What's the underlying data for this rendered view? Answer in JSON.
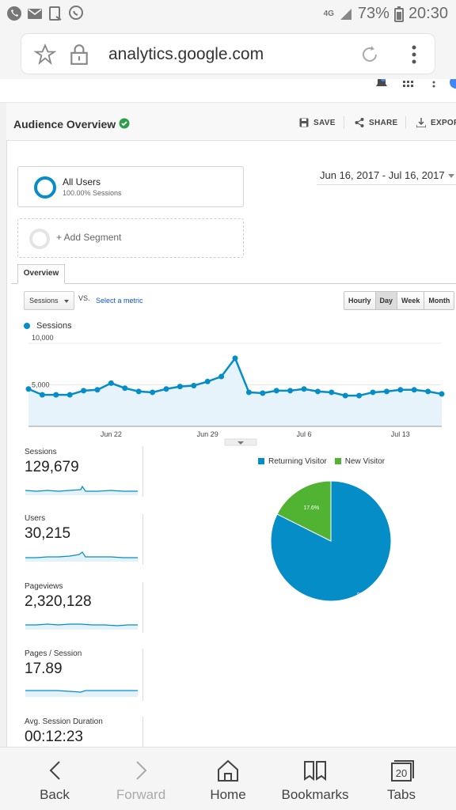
{
  "status_bar": {
    "network": "4G",
    "battery": "73%",
    "time": "20:30"
  },
  "browser": {
    "url": "analytics.google.com"
  },
  "report": {
    "title": "Audience Overview",
    "actions": {
      "save": "SAVE",
      "share": "SHARE",
      "export": "EXPORT"
    },
    "segment": {
      "name": "All Users",
      "share": "100.00% Sessions",
      "add_label": "+ Add Segment"
    },
    "date_range": "Jun 16, 2017 - Jul 16, 2017",
    "tab": "Overview",
    "metric_select": "Sessions",
    "vs": "VS.",
    "select_metric": "Select a metric",
    "granularity": [
      "Hourly",
      "Day",
      "Week",
      "Month"
    ],
    "granularity_selected": "Day"
  },
  "chart_data": [
    {
      "type": "area",
      "series": [
        {
          "name": "Sessions",
          "values": [
            4500,
            3800,
            3800,
            3800,
            4300,
            4400,
            5200,
            4600,
            4200,
            4100,
            4500,
            4800,
            4900,
            5400,
            6000,
            8200,
            4100,
            4000,
            4300,
            4300,
            4500,
            4200,
            4100,
            3700,
            3700,
            4100,
            4200,
            4400,
            4400,
            4200,
            3900
          ]
        }
      ],
      "x_ticks": [
        "Jun 22",
        "Jun 29",
        "Jul 6",
        "Jul 13"
      ],
      "y_ticks": [
        "5,000",
        "10,000"
      ],
      "ylim": [
        0,
        10000
      ],
      "color": "#058dc7"
    },
    {
      "type": "pie",
      "categories": [
        "Returning Visitor",
        "New Visitor"
      ],
      "values": [
        82.4,
        17.6
      ],
      "labels": [
        "82.4%",
        "17.6%"
      ],
      "colors": [
        "#058dc7",
        "#50b432"
      ],
      "legend": "top"
    }
  ],
  "metrics": [
    {
      "name": "Sessions",
      "value": "129,679"
    },
    {
      "name": "Users",
      "value": "30,215"
    },
    {
      "name": "Pageviews",
      "value": "2,320,128"
    },
    {
      "name": "Pages / Session",
      "value": "17.89"
    },
    {
      "name": "Avg. Session Duration",
      "value": "00:12:23"
    }
  ],
  "bottom_nav": {
    "back": "Back",
    "forward": "Forward",
    "home": "Home",
    "bookmarks": "Bookmarks",
    "tabs": "Tabs",
    "tab_count": "20"
  }
}
